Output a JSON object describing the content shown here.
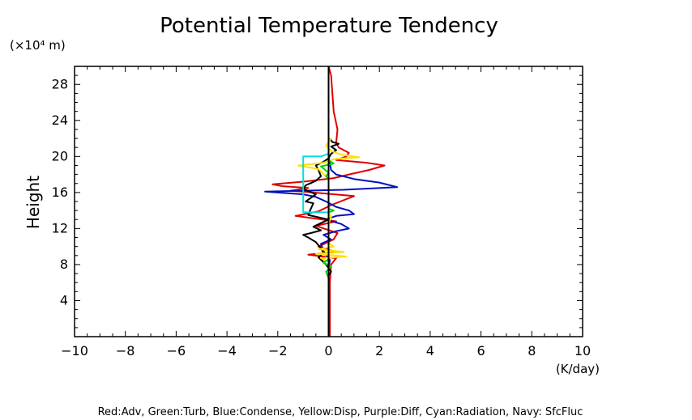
{
  "chart_data": {
    "type": "line",
    "title": "Potential Temperature Tendency",
    "ylabel": "Height",
    "y_unit_label": "(×10⁴ m)",
    "x_unit_label": "(K/day)",
    "xlim": [
      -10,
      10
    ],
    "ylim": [
      0,
      30
    ],
    "x_ticks": [
      -10,
      -8,
      -6,
      -4,
      -2,
      0,
      2,
      4,
      6,
      8,
      10
    ],
    "x_tick_labels": [
      "−10",
      "−8",
      "−6",
      "−4",
      "−2",
      "0",
      "2",
      "4",
      "6",
      "8",
      "10"
    ],
    "y_ticks": [
      4,
      8,
      12,
      16,
      20,
      24,
      28
    ],
    "y_tick_labels": [
      "4",
      "8",
      "12",
      "16",
      "20",
      "24",
      "28"
    ],
    "grid": false,
    "legend_text": "Red:Adv, Green:Turb, Blue:Condense, Yellow:Disp, Purple:Diff, Cyan:Radiation, Navy: SfcFluc",
    "colors": {
      "Red": "#e00000",
      "Green": "#00d000",
      "Blue": "#0010c0",
      "Yellow": "#ffe000",
      "Cyan": "#00e0e0",
      "Black": "#000000"
    },
    "series": [
      {
        "name": "Red:Adv",
        "color": "#e00000",
        "points": [
          [
            0.05,
            0
          ],
          [
            0.05,
            6
          ],
          [
            0.1,
            8
          ],
          [
            0.3,
            8.7
          ],
          [
            -0.8,
            9.1
          ],
          [
            0.3,
            9.4
          ],
          [
            -0.4,
            10
          ],
          [
            0.2,
            10.8
          ],
          [
            0.35,
            11.5
          ],
          [
            -0.5,
            12.3
          ],
          [
            0.3,
            12.8
          ],
          [
            -1.3,
            13.4
          ],
          [
            -0.4,
            13.9
          ],
          [
            0.1,
            14.6
          ],
          [
            1.0,
            15.6
          ],
          [
            -0.6,
            16.0
          ],
          [
            -1.5,
            16.2
          ],
          [
            -0.8,
            16.5
          ],
          [
            -1.8,
            16.7
          ],
          [
            -2.2,
            16.9
          ],
          [
            -1.0,
            17.2
          ],
          [
            0.2,
            17.6
          ],
          [
            0.8,
            18.0
          ],
          [
            1.6,
            18.5
          ],
          [
            2.2,
            19.0
          ],
          [
            1.5,
            19.3
          ],
          [
            0.3,
            19.6
          ],
          [
            0.7,
            20.0
          ],
          [
            0.8,
            20.4
          ],
          [
            0.4,
            21.0
          ],
          [
            0.3,
            21.5
          ],
          [
            0.35,
            23
          ],
          [
            0.2,
            25
          ],
          [
            0.15,
            27
          ],
          [
            0.1,
            29
          ],
          [
            0,
            30
          ]
        ]
      },
      {
        "name": "Blue:Condense",
        "color": "#0010c0",
        "points": [
          [
            0,
            0
          ],
          [
            0,
            7.5
          ],
          [
            0.05,
            8.5
          ],
          [
            -0.2,
            9.5
          ],
          [
            -0.3,
            10.3
          ],
          [
            0.1,
            10.8
          ],
          [
            -0.2,
            11.3
          ],
          [
            0.3,
            11.7
          ],
          [
            0.8,
            12.0
          ],
          [
            0.5,
            12.5
          ],
          [
            -0.1,
            13.0
          ],
          [
            0.3,
            13.4
          ],
          [
            1.0,
            13.6
          ],
          [
            0.8,
            14.0
          ],
          [
            0.3,
            14.4
          ],
          [
            -0.1,
            15.0
          ],
          [
            -0.5,
            15.5
          ],
          [
            -1.0,
            15.8
          ],
          [
            -2.5,
            16.1
          ],
          [
            0.6,
            16.3
          ],
          [
            2.7,
            16.6
          ],
          [
            2.0,
            17.1
          ],
          [
            1.0,
            17.5
          ],
          [
            0.3,
            18.0
          ],
          [
            0.1,
            18.5
          ],
          [
            0,
            20
          ]
        ]
      },
      {
        "name": "Black",
        "color": "#000000",
        "points": [
          [
            0,
            6.8
          ],
          [
            0.1,
            7.2
          ],
          [
            -0.1,
            8
          ],
          [
            -0.4,
            8.8
          ],
          [
            -0.2,
            9.3
          ],
          [
            -0.3,
            9.8
          ],
          [
            -0.5,
            10.5
          ],
          [
            -0.8,
            11.0
          ],
          [
            -1.0,
            11.3
          ],
          [
            -0.7,
            11.5
          ],
          [
            -0.3,
            11.8
          ],
          [
            -0.6,
            12.2
          ],
          [
            -0.3,
            12.6
          ],
          [
            0,
            13.0
          ],
          [
            -0.8,
            13.5
          ],
          [
            -0.7,
            14.2
          ],
          [
            -0.6,
            14.8
          ],
          [
            -0.9,
            15.0
          ],
          [
            -0.7,
            15.4
          ],
          [
            -0.5,
            15.8
          ],
          [
            -1.0,
            16.4
          ],
          [
            -0.9,
            16.8
          ],
          [
            -0.5,
            17.3
          ],
          [
            -0.3,
            17.8
          ],
          [
            -0.4,
            18.5
          ],
          [
            -0.5,
            19.0
          ],
          [
            -0.2,
            19.4
          ],
          [
            0,
            19.8
          ],
          [
            0.1,
            20.3
          ],
          [
            0.3,
            20.7
          ],
          [
            0.1,
            21.1
          ],
          [
            0.4,
            21.4
          ],
          [
            0.15,
            21.6
          ],
          [
            0.05,
            22
          ]
        ]
      },
      {
        "name": "Yellow:Disp",
        "color": "#ffe000",
        "points": [
          [
            0,
            8.3
          ],
          [
            -0.3,
            8.7
          ],
          [
            0.7,
            8.9
          ],
          [
            -0.5,
            9.2
          ],
          [
            0.6,
            9.4
          ],
          [
            -0.4,
            9.7
          ],
          [
            0.2,
            10.0
          ],
          [
            0,
            10.4
          ],
          [
            0,
            12.5
          ],
          [
            0.1,
            13.3
          ],
          [
            0,
            13.8
          ],
          [
            0,
            17.5
          ],
          [
            -0.4,
            18.6
          ],
          [
            -1.2,
            19.0
          ],
          [
            -0.2,
            19.3
          ],
          [
            0.2,
            19.7
          ],
          [
            0.6,
            19.8
          ],
          [
            1.2,
            19.9
          ],
          [
            0.5,
            20.2
          ],
          [
            0.1,
            20.6
          ],
          [
            -0.1,
            21.2
          ],
          [
            0,
            21.6
          ],
          [
            0.1,
            22
          ]
        ]
      },
      {
        "name": "Green:Turb",
        "color": "#00d000",
        "points": [
          [
            0,
            6.5
          ],
          [
            -0.1,
            7.2
          ],
          [
            0.1,
            7.8
          ],
          [
            -0.2,
            8.2
          ],
          [
            0,
            8.6
          ],
          [
            0,
            13.8
          ],
          [
            0.2,
            14.0
          ],
          [
            0,
            14.2
          ],
          [
            0,
            17.4
          ],
          [
            -0.1,
            17.8
          ],
          [
            0,
            18.2
          ],
          [
            -0.3,
            18.9
          ],
          [
            0.2,
            19.2
          ],
          [
            0,
            19.6
          ],
          [
            0,
            21
          ]
        ]
      },
      {
        "name": "Cyan:Radiation",
        "color": "#00e0e0",
        "points": [
          [
            0,
            13.8
          ],
          [
            -1.0,
            13.8
          ],
          [
            -1.0,
            20.0
          ],
          [
            -0.3,
            20.0
          ],
          [
            -0.1,
            20.2
          ],
          [
            0,
            20.3
          ]
        ]
      },
      {
        "name": "Black",
        "color": "#000000",
        "points": [
          [
            0,
            0
          ],
          [
            0,
            30
          ]
        ]
      }
    ]
  }
}
